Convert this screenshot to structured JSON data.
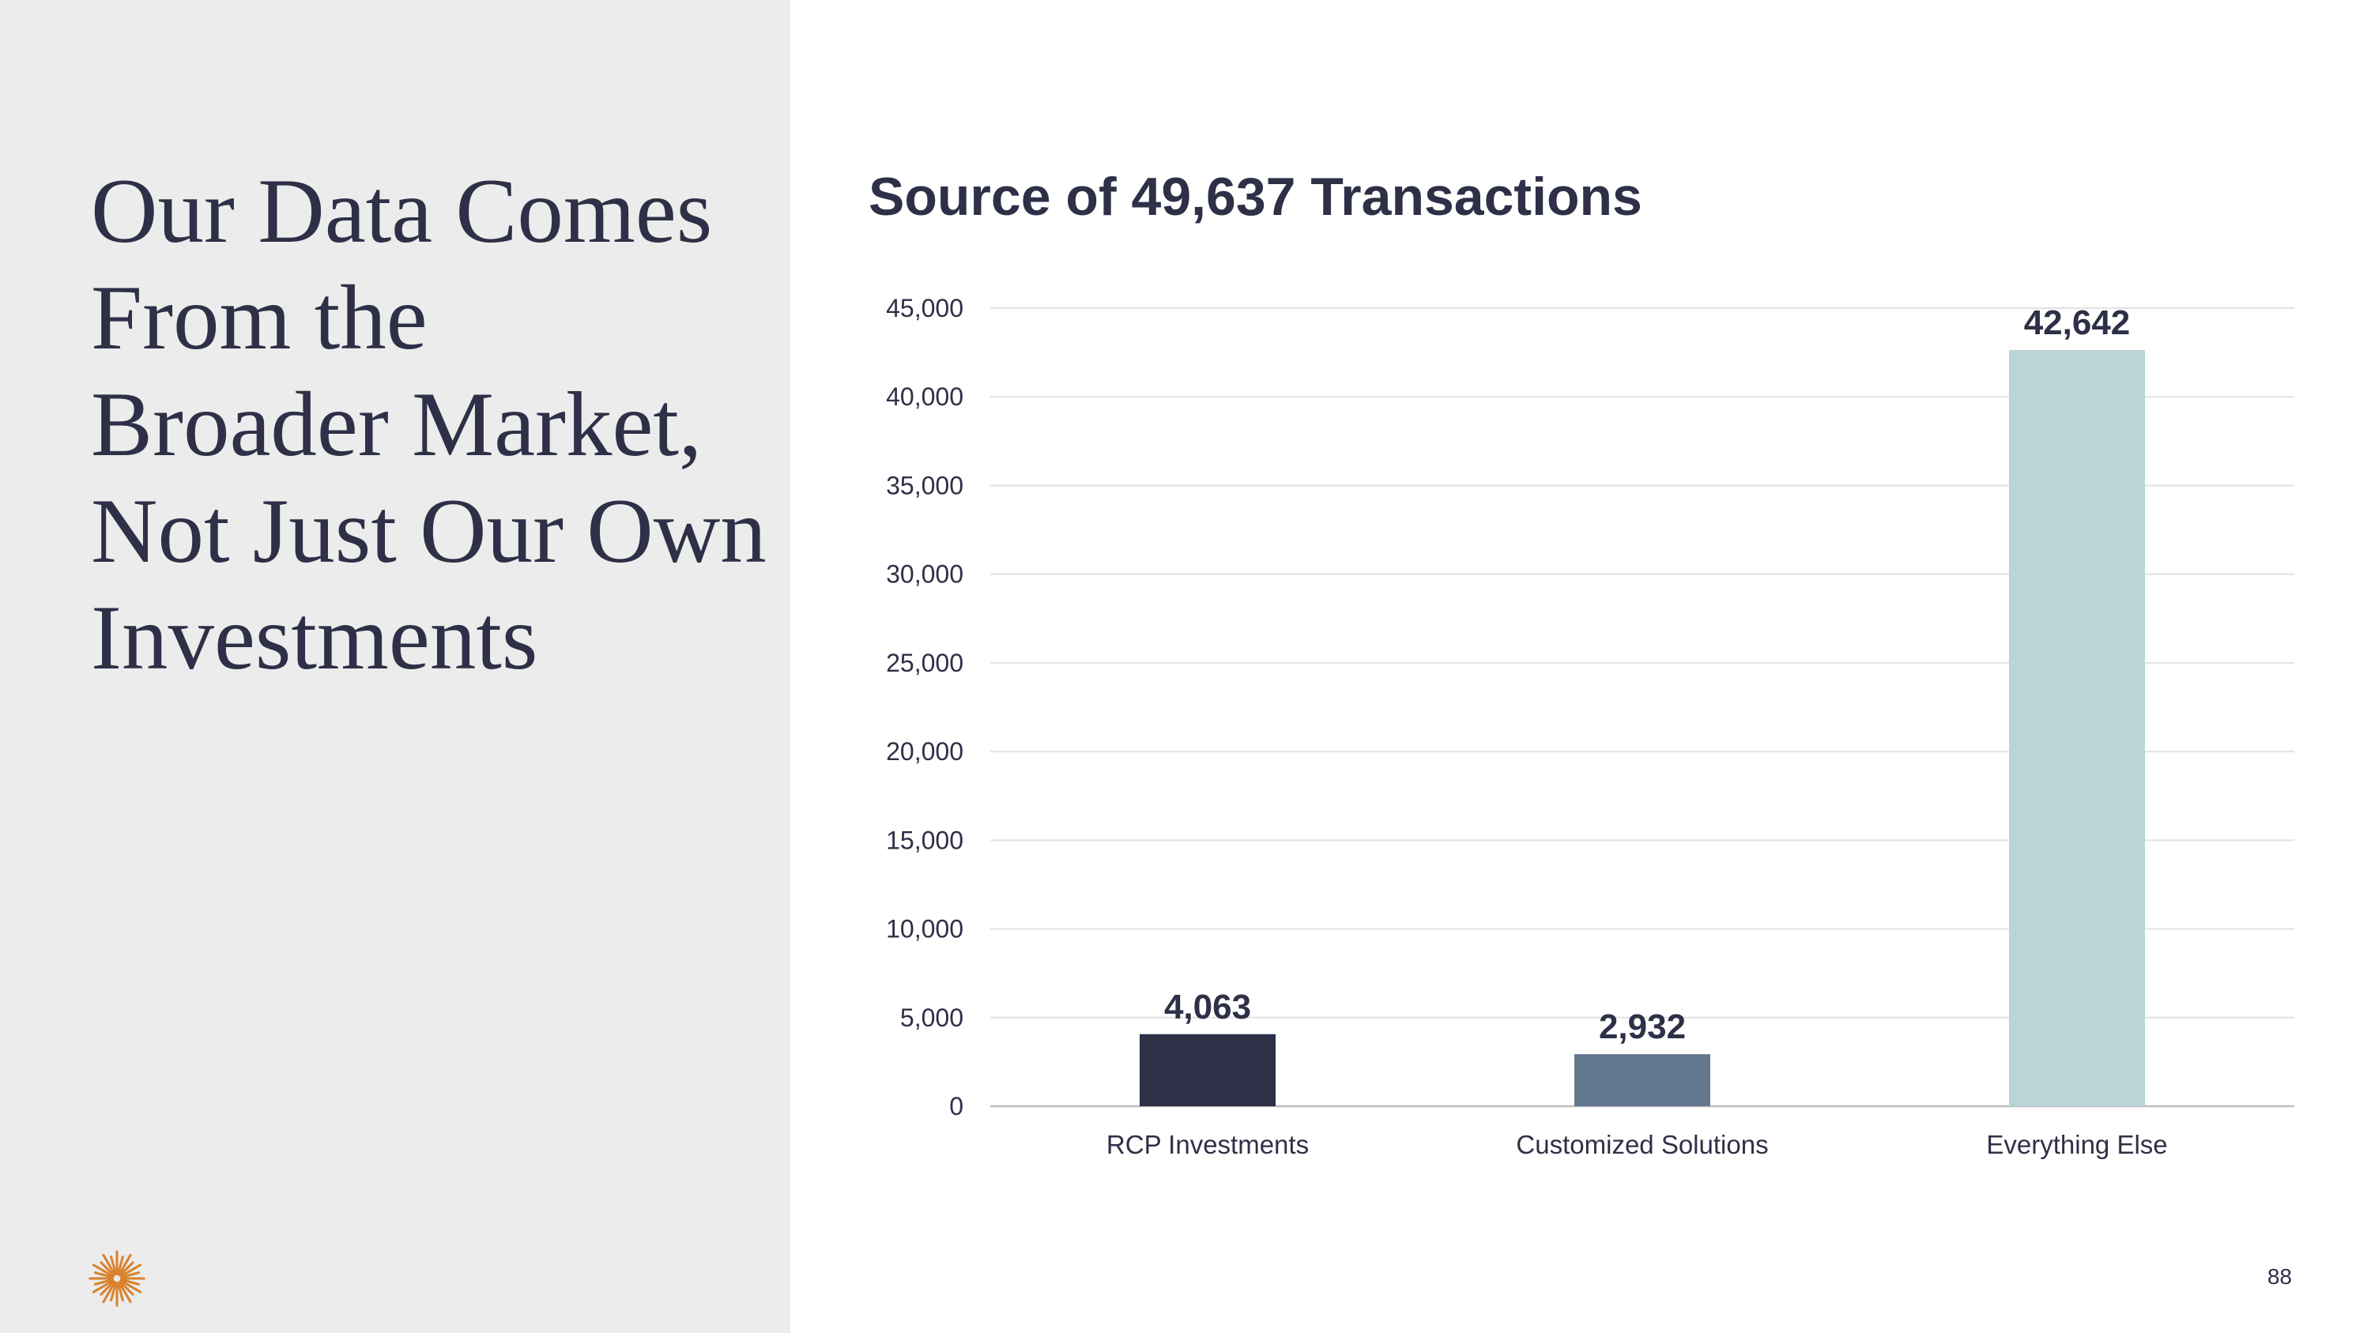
{
  "headline": [
    "Our Data Comes",
    "From the",
    "Broader Market,",
    "Not Just Our Own",
    "Investments"
  ],
  "page_number": "88",
  "logo": {
    "icon": "asterisk-starburst-icon",
    "color": "#d9822b"
  },
  "colors": {
    "text": "#2e3047",
    "panel": "#ececec",
    "grid": "#e2e2e2",
    "axis": "#bdbdbd"
  },
  "chart_data": {
    "type": "bar",
    "title": "Source of 49,637 Transactions",
    "categories": [
      "RCP Investments",
      "Customized Solutions",
      "Everything Else"
    ],
    "values": [
      4063,
      2932,
      42642
    ],
    "data_labels": [
      "4,063",
      "2,932",
      "42,642"
    ],
    "bar_colors": [
      "#2e3047",
      "#62778e",
      "#bbd4d6"
    ],
    "ylim": [
      0,
      45000
    ],
    "yticks": [
      0,
      5000,
      10000,
      15000,
      20000,
      25000,
      30000,
      35000,
      40000,
      45000
    ],
    "ytick_labels": [
      "0",
      "5,000",
      "10,000",
      "15,000",
      "20,000",
      "25,000",
      "30,000",
      "35,000",
      "40,000",
      "45,000"
    ],
    "xlabel": "",
    "ylabel": "",
    "grid": true,
    "legend": "none"
  }
}
